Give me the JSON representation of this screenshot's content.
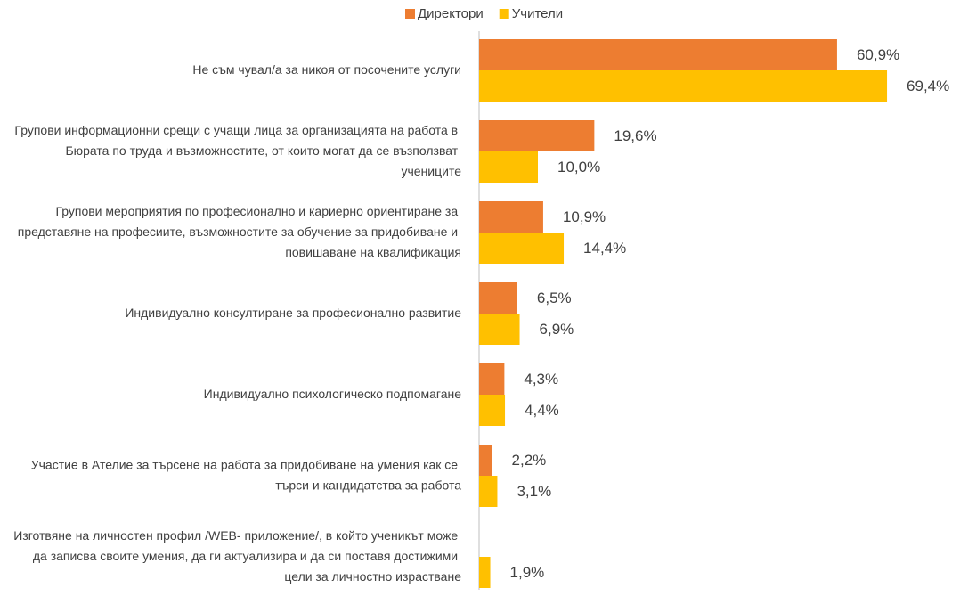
{
  "chart_data": {
    "type": "bar",
    "orientation": "horizontal",
    "categories": [
      "Не съм чувал/а за никоя от посочените услуги",
      "Групови информационни срещи с учащи лица за организацията на работа в Бюрата по труда и възможностите, от които могат да се възползват учениците",
      "Групови мероприятия по професионално и кариерно ориентиране за представяне на професиите, възможностите за обучение за придобиване и повишаване на квалификация",
      "Индивидуално консултиране за професионално развитие",
      "Индивидуално психологическо подпомагане",
      "Участие в Ателие за търсене на работа за придобиване на умения как се търси и кандидатства за работа",
      "Изготвяне на личностен профил /WEB- приложение/, в който ученикът може да записва своите умения, да ги актуализира и да си поставя достижими цели за личностно израстване"
    ],
    "series": [
      {
        "name": "Директори",
        "color": "#ed7d31",
        "values": [
          60.9,
          19.6,
          10.9,
          6.5,
          4.3,
          2.2,
          null
        ],
        "value_labels": [
          "60,9%",
          "19,6%",
          "10,9%",
          "6,5%",
          "4,3%",
          "2,2%",
          null
        ]
      },
      {
        "name": "Учители",
        "color": "#ffc000",
        "values": [
          69.4,
          10.0,
          14.4,
          6.9,
          4.4,
          3.1,
          1.9
        ],
        "value_labels": [
          "69,4%",
          "10,0%",
          "14,4%",
          "6,9%",
          "4,4%",
          "3,1%",
          "1,9%"
        ]
      }
    ],
    "xlim": [
      0,
      80
    ],
    "legend": "top"
  }
}
